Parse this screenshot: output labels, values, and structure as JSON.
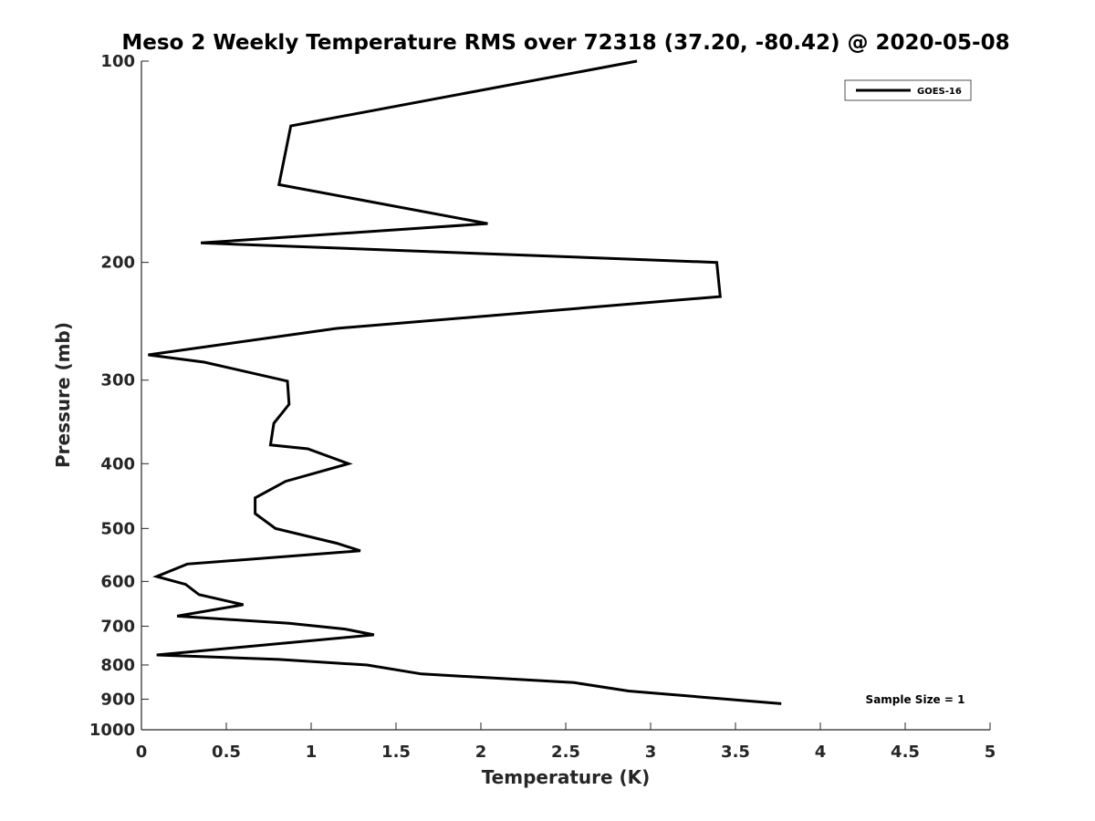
{
  "chart_data": {
    "type": "line",
    "title": "Meso 2 Weekly Temperature RMS over 72318 (37.20, -80.42) @ 2020-05-08",
    "xlabel": "Temperature (K)",
    "ylabel": "Pressure (mb)",
    "xlim": [
      0,
      5
    ],
    "ylim": [
      1000,
      100
    ],
    "y_scale": "log",
    "y_reversed": true,
    "grid": false,
    "legend_position": "top-right",
    "x_ticks": [
      "0",
      "0.5",
      "1",
      "1.5",
      "2",
      "2.5",
      "3",
      "3.5",
      "4",
      "4.5",
      "5"
    ],
    "y_ticks": [
      "100",
      "200",
      "300",
      "400",
      "500",
      "600",
      "700",
      "800",
      "900",
      "1000"
    ],
    "annotation": "Sample Size = 1",
    "colors": {
      "line": "#000000",
      "axis": "#262626"
    },
    "series": [
      {
        "name": "GOES-16",
        "x": [
          2.92,
          0.88,
          0.81,
          2.04,
          0.35,
          3.39,
          3.41,
          1.15,
          0.04,
          0.37,
          0.86,
          0.87,
          0.78,
          0.76,
          0.98,
          1.22,
          0.85,
          0.67,
          0.67,
          0.79,
          1.15,
          1.29,
          0.27,
          0.09,
          0.26,
          0.34,
          0.6,
          0.21,
          0.87,
          1.2,
          1.37,
          0.09,
          0.81,
          1.33,
          1.65,
          2.55,
          2.87,
          3.77
        ],
        "y": [
          100,
          125,
          153,
          175,
          187,
          200,
          225,
          251,
          275,
          282,
          301,
          326,
          348,
          375,
          380,
          400,
          425,
          450,
          475,
          500,
          526,
          540,
          565,
          590,
          606,
          628,
          650,
          676,
          693,
          707,
          721,
          773,
          785,
          800,
          825,
          850,
          875,
          914
        ]
      }
    ]
  }
}
